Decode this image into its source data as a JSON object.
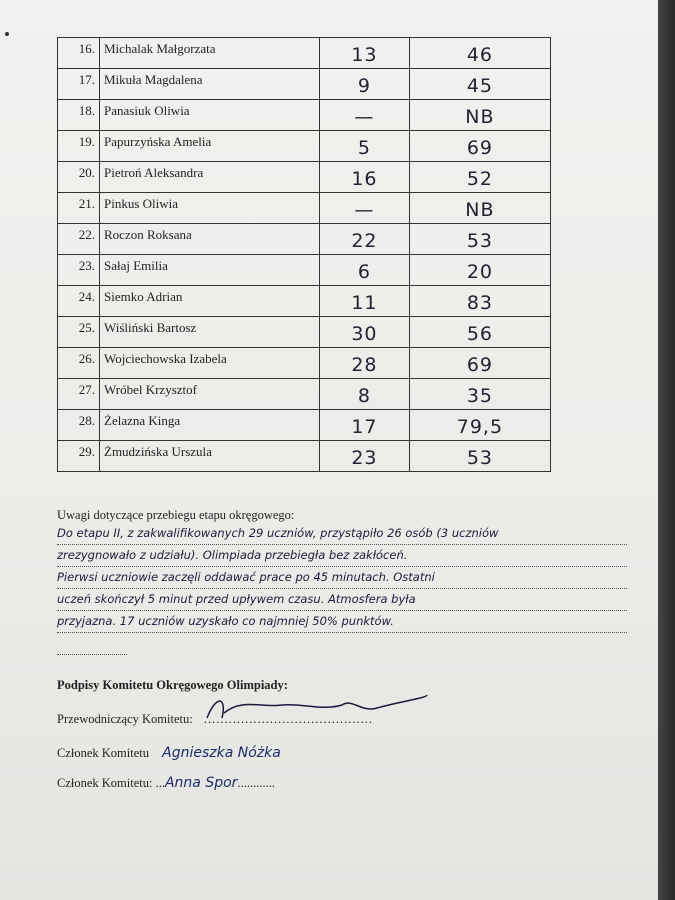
{
  "rows": [
    {
      "no": "16.",
      "name": "Michalak Małgorzata",
      "s1": "13",
      "s2": "46"
    },
    {
      "no": "17.",
      "name": "Mikuła Magdalena",
      "s1": "9",
      "s2": "45"
    },
    {
      "no": "18.",
      "name": "Panasiuk Oliwia",
      "s1": "—",
      "s2": "NB"
    },
    {
      "no": "19.",
      "name": "Papurzyńska Amelia",
      "s1": "5",
      "s2": "69"
    },
    {
      "no": "20.",
      "name": "Pietroń Aleksandra",
      "s1": "16",
      "s2": "52"
    },
    {
      "no": "21.",
      "name": "Pinkus Oliwia",
      "s1": "—",
      "s2": "NB"
    },
    {
      "no": "22.",
      "name": "Roczon Roksana",
      "s1": "22",
      "s2": "53"
    },
    {
      "no": "23.",
      "name": "Sałaj Emilia",
      "s1": "6",
      "s2": "20"
    },
    {
      "no": "24.",
      "name": "Siemko Adrian",
      "s1": "11",
      "s2": "83"
    },
    {
      "no": "25.",
      "name": "Wiśliński Bartosz",
      "s1": "30",
      "s2": "56"
    },
    {
      "no": "26.",
      "name": "Wojciechowska Izabela",
      "s1": "28",
      "s2": "69"
    },
    {
      "no": "27.",
      "name": "Wróbel Krzysztof",
      "s1": "8",
      "s2": "35"
    },
    {
      "no": "28.",
      "name": "Żelazna Kinga",
      "s1": "17",
      "s2": "79,5"
    },
    {
      "no": "29.",
      "name": "Żmudzińska Urszula",
      "s1": "23",
      "s2": "53"
    }
  ],
  "notes": {
    "label": "Uwagi dotyczące przebiegu etapu okręgowego:",
    "lines": [
      "Do etapu II, z zakwalifikowanych 29 uczniów, przystąpiło 26 osób (3 uczniów",
      "zrezygnowało z udziału). Olimpiada przebiegła bez zakłóceń.",
      "Pierwsi uczniowie zaczęli oddawać prace po 45 minutach. Ostatni",
      "uczeń skończył 5 minut przed upływem czasu. Atmosfera była",
      "przyjazna. 17 uczniów uzyskało co najmniej 50% punktów.",
      ""
    ]
  },
  "signatures": {
    "title": "Podpisy Komitetu Okręgowego Olimpiady:",
    "chair_label": "Przewodniczący Komitetu:",
    "member1_label": "Członek Komitetu",
    "member1_sig": "Agnieszka Nóżka",
    "member2_label": "Członek Komitetu:",
    "member2_sig": "Anna Spor"
  }
}
